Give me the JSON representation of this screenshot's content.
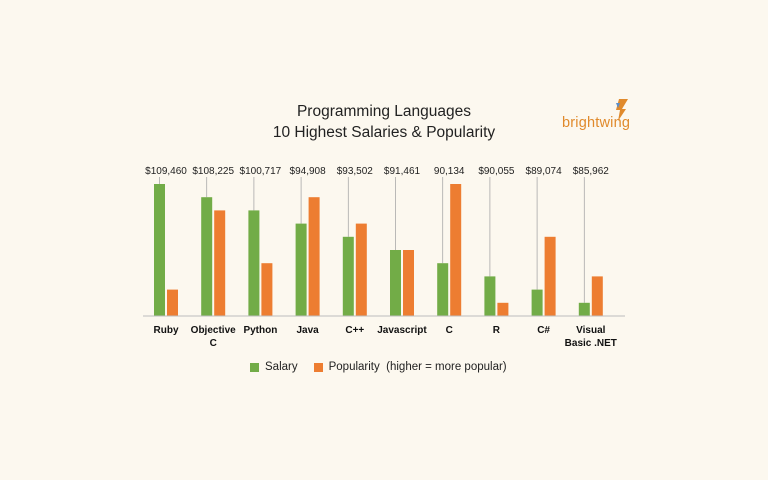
{
  "chart_data": {
    "type": "bar",
    "title": "Programming Languages",
    "subtitle": "10 Highest Salaries & Popularity",
    "categories": [
      "Ruby",
      "Objective C",
      "Python",
      "Java",
      "C++",
      "Javascript",
      "C",
      "R",
      "C#",
      "Visual Basic .NET"
    ],
    "category_lines": [
      [
        "Ruby"
      ],
      [
        "Objective",
        "C"
      ],
      [
        "Python"
      ],
      [
        "Java"
      ],
      [
        "C++"
      ],
      [
        "Javascript"
      ],
      [
        "C"
      ],
      [
        "R"
      ],
      [
        "C#"
      ],
      [
        "Visual",
        "Basic .NET"
      ]
    ],
    "salary_labels": [
      "$109,460",
      "$108,225",
      "$100,717",
      "$94,908",
      "$93,502",
      "$91,461",
      "90,134",
      "$90,055",
      "$89,074",
      "$85,962"
    ],
    "series": [
      {
        "name": "Salary",
        "color": "#72ac47",
        "values": [
          10,
          9,
          8,
          7,
          6,
          5,
          4,
          3,
          2,
          1
        ]
      },
      {
        "name": "Popularity  (higher = more popular)",
        "color": "#ed7d31",
        "values": [
          2,
          8,
          4,
          9,
          7,
          5,
          10,
          1,
          6,
          3
        ]
      }
    ],
    "ylim": [
      0,
      10
    ],
    "legend_position": "bottom",
    "grid": false
  },
  "brand": {
    "name": "brightwing",
    "color": "#e08a2c"
  }
}
